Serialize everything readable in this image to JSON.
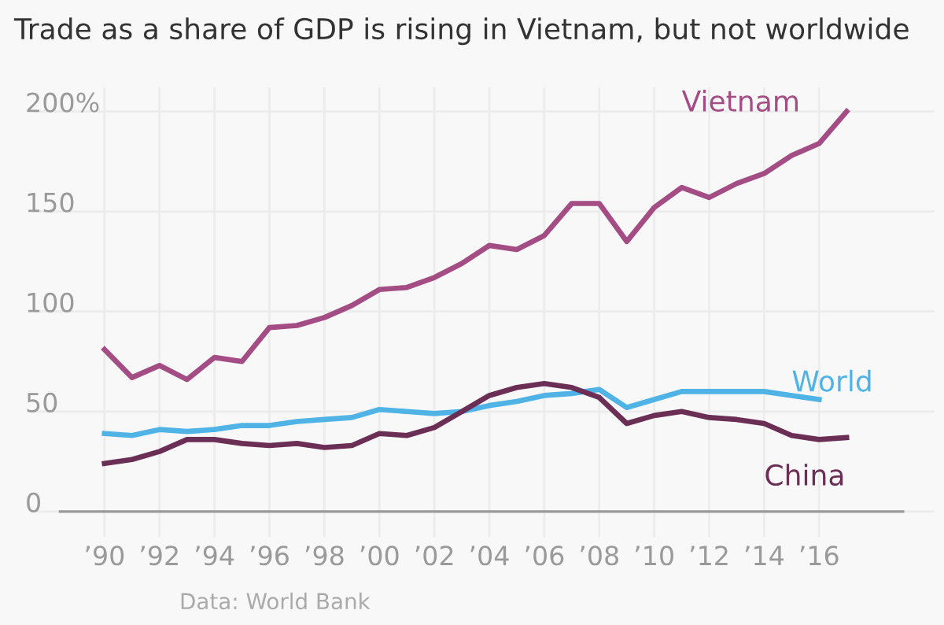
{
  "chart_data": {
    "type": "line",
    "title": "Trade as a share of GDP is rising in Vietnam, but not worldwide",
    "x": [
      1990,
      1991,
      1992,
      1993,
      1994,
      1995,
      1996,
      1997,
      1998,
      1999,
      2000,
      2001,
      2002,
      2003,
      2004,
      2005,
      2006,
      2007,
      2008,
      2009,
      2010,
      2011,
      2012,
      2013,
      2014,
      2015,
      2016,
      2017
    ],
    "series": [
      {
        "name": "Vietnam",
        "color": "#a44d85",
        "values": [
          81,
          67,
          73,
          66,
          77,
          75,
          92,
          93,
          97,
          103,
          111,
          112,
          117,
          124,
          133,
          131,
          138,
          154,
          154,
          135,
          152,
          162,
          157,
          164,
          169,
          178,
          184,
          200
        ]
      },
      {
        "name": "World",
        "color": "#4fb3e6",
        "values": [
          39,
          38,
          41,
          40,
          41,
          43,
          43,
          45,
          46,
          47,
          51,
          50,
          49,
          50,
          53,
          55,
          58,
          59,
          61,
          52,
          56,
          60,
          60,
          60,
          60,
          58,
          56,
          null
        ]
      },
      {
        "name": "China",
        "color": "#6b2e55",
        "values": [
          24,
          26,
          30,
          36,
          36,
          34,
          33,
          34,
          32,
          33,
          39,
          38,
          42,
          50,
          58,
          62,
          64,
          62,
          57,
          44,
          48,
          50,
          47,
          46,
          44,
          38,
          36,
          37
        ]
      }
    ],
    "xlim": [
      1987.4,
      2020.2
    ],
    "ylim": [
      -13,
      212
    ],
    "xticks": [
      {
        "value": 1990,
        "label": "’90"
      },
      {
        "value": 1992,
        "label": "’92"
      },
      {
        "value": 1994,
        "label": "’94"
      },
      {
        "value": 1996,
        "label": "’96"
      },
      {
        "value": 1998,
        "label": "’98"
      },
      {
        "value": 2000,
        "label": "’00"
      },
      {
        "value": 2002,
        "label": "’02"
      },
      {
        "value": 2004,
        "label": "’04"
      },
      {
        "value": 2006,
        "label": "’06"
      },
      {
        "value": 2008,
        "label": "’08"
      },
      {
        "value": 2010,
        "label": "’10"
      },
      {
        "value": 2012,
        "label": "’12"
      },
      {
        "value": 2014,
        "label": "’14"
      },
      {
        "value": 2016,
        "label": "’16"
      }
    ],
    "yticks": [
      0,
      50,
      100,
      150,
      {
        "value": 200,
        "label": "200%"
      }
    ],
    "grid": true,
    "legend": false,
    "marker": "none",
    "line_style": "solid",
    "annotations": [
      "Data: World Bank"
    ]
  }
}
